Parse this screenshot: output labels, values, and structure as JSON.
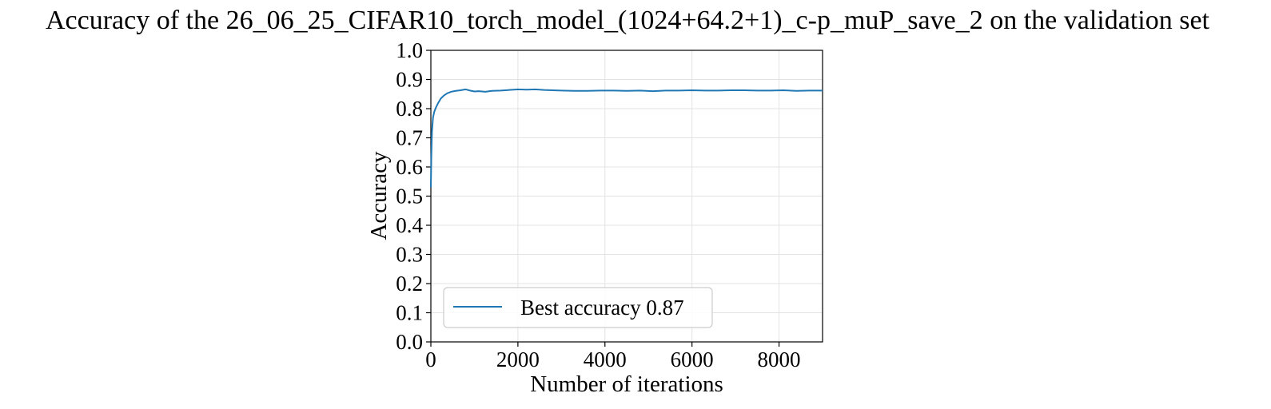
{
  "chart_data": {
    "type": "line",
    "title": "Accuracy of the 26_06_25_CIFAR10_torch_model_(1024+64.2+1)_c-p_muP_save_2 on the validation set",
    "xlabel": "Number of iterations",
    "ylabel": "Accuracy",
    "xlim": [
      0,
      9000
    ],
    "ylim": [
      0.0,
      1.0
    ],
    "xticks": [
      0,
      2000,
      4000,
      6000,
      8000
    ],
    "xtick_labels": [
      "0",
      "2000",
      "4000",
      "6000",
      "8000"
    ],
    "yticks": [
      0.0,
      0.1,
      0.2,
      0.3,
      0.4,
      0.5,
      0.6,
      0.7,
      0.8,
      0.9,
      1.0
    ],
    "ytick_labels": [
      "0.0",
      "0.1",
      "0.2",
      "0.3",
      "0.4",
      "0.5",
      "0.6",
      "0.7",
      "0.8",
      "0.9",
      "1.0"
    ],
    "grid": true,
    "legend_position": "lower-left",
    "series": [
      {
        "name": "Best accuracy 0.87",
        "color": "#1f77b4",
        "x": [
          0,
          10,
          25,
          50,
          80,
          120,
          170,
          230,
          300,
          380,
          470,
          570,
          680,
          800,
          900,
          1000,
          1100,
          1250,
          1400,
          1600,
          1800,
          2000,
          2200,
          2400,
          2600,
          2800,
          3000,
          3300,
          3600,
          3900,
          4200,
          4500,
          4800,
          5100,
          5400,
          5700,
          6000,
          6300,
          6600,
          6900,
          7200,
          7500,
          7800,
          8100,
          8400,
          8700,
          9000
        ],
        "y": [
          0.53,
          0.63,
          0.72,
          0.77,
          0.79,
          0.805,
          0.82,
          0.835,
          0.845,
          0.853,
          0.858,
          0.861,
          0.863,
          0.866,
          0.862,
          0.859,
          0.86,
          0.858,
          0.861,
          0.862,
          0.864,
          0.866,
          0.865,
          0.866,
          0.864,
          0.863,
          0.862,
          0.861,
          0.861,
          0.862,
          0.862,
          0.861,
          0.862,
          0.86,
          0.862,
          0.862,
          0.863,
          0.862,
          0.862,
          0.863,
          0.863,
          0.862,
          0.862,
          0.863,
          0.861,
          0.862,
          0.862
        ]
      }
    ]
  }
}
